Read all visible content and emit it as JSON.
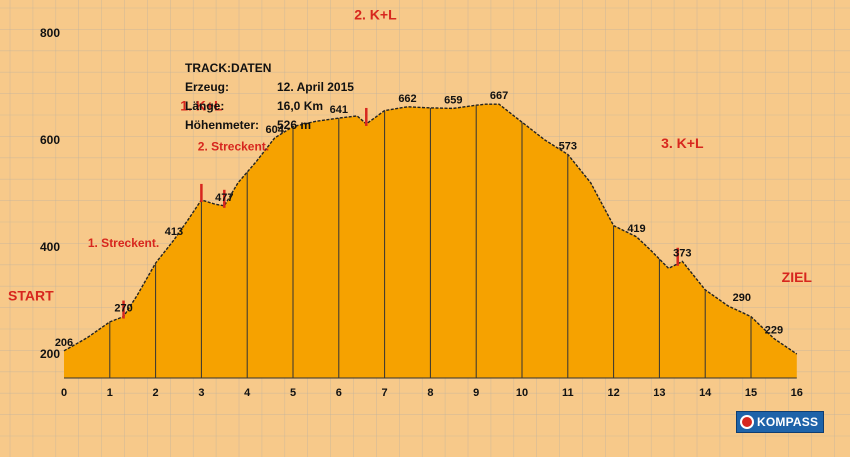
{
  "track": {
    "title": "TRACK:DATEN",
    "rows": [
      {
        "key": "Erzeug:",
        "value": "12. April 2015"
      },
      {
        "key": "Länge:",
        "value": "16,0 Km"
      },
      {
        "key": "Höhenmeter:",
        "value": "526 m"
      }
    ]
  },
  "logo": {
    "text": "KOMPASS"
  },
  "colors": {
    "background": "#f7c98a",
    "fill": "#f6a200",
    "grid": "#b9b0a0",
    "accent": "#d7261e"
  },
  "chart_data": {
    "type": "area",
    "xlabel": "",
    "ylabel": "",
    "xlim": [
      0,
      16
    ],
    "ylim": [
      100,
      1300
    ],
    "x_ticks": [
      0,
      1,
      2,
      3,
      4,
      5,
      6,
      7,
      8,
      9,
      10,
      11,
      12,
      13,
      14,
      15,
      16
    ],
    "y_ticks": [
      200,
      400,
      600,
      800,
      1000,
      1200
    ],
    "grid": true,
    "series": [
      {
        "x": [
          0,
          0.5,
          1,
          1.3,
          1.6,
          2,
          2.4,
          2.7,
          3,
          3.3,
          3.5,
          3.8,
          4.2,
          4.6,
          5,
          5.5,
          6,
          6.4,
          6.6,
          7,
          7.5,
          8,
          8.5,
          9,
          9.2,
          9.5,
          9.9,
          10.5,
          11,
          11.5,
          12,
          12.5,
          12.8,
          13.2,
          13.5,
          14,
          14.5,
          15,
          15.5,
          16
        ],
        "y": [
          206,
          230,
          260,
          270,
          310,
          370,
          413,
          450,
          488,
          480,
          477,
          520,
          560,
          604,
          625,
          635,
          641,
          645,
          630,
          655,
          662,
          660,
          659,
          665,
          667,
          667,
          640,
          600,
          573,
          520,
          440,
          419,
          395,
          360,
          373,
          320,
          290,
          270,
          229,
          200
        ]
      }
    ],
    "elevation_labels": [
      {
        "x": 0,
        "y": 206,
        "label": "206"
      },
      {
        "x": 1.3,
        "y": 270,
        "label": "270"
      },
      {
        "x": 2.4,
        "y": 413,
        "label": "413"
      },
      {
        "x": 3.5,
        "y": 477,
        "label": "477"
      },
      {
        "x": 4.6,
        "y": 604,
        "label": "604"
      },
      {
        "x": 6,
        "y": 641,
        "label": "641"
      },
      {
        "x": 7.5,
        "y": 662,
        "label": "662"
      },
      {
        "x": 8.5,
        "y": 659,
        "label": "659"
      },
      {
        "x": 9.5,
        "y": 667,
        "label": "667"
      },
      {
        "x": 11,
        "y": 573,
        "label": "573"
      },
      {
        "x": 12.5,
        "y": 419,
        "label": "419"
      },
      {
        "x": 13.5,
        "y": 373,
        "label": "373"
      },
      {
        "x": 14.8,
        "y": 290,
        "label": "290"
      },
      {
        "x": 15.5,
        "y": 229,
        "label": "229"
      }
    ],
    "annotations": [
      {
        "x": 0,
        "y": 300,
        "label": "START"
      },
      {
        "x": 16,
        "y": 335,
        "label": "ZIEL"
      },
      {
        "x": 1.3,
        "y": 400,
        "label": "1. Streckent."
      },
      {
        "x": 3,
        "y": 655,
        "label": "1. K+L"
      },
      {
        "x": 3.7,
        "y": 580,
        "label": "2. Streckent."
      },
      {
        "x": 6.8,
        "y": 825,
        "label": "2. K+L"
      },
      {
        "x": 13.5,
        "y": 585,
        "label": "3. K+L"
      }
    ],
    "markers": [
      1.3,
      3,
      3.5,
      6.6,
      13.4
    ]
  }
}
